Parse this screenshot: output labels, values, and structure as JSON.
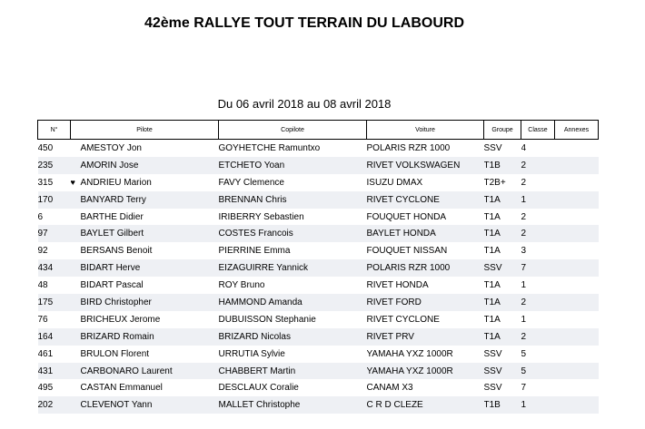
{
  "document": {
    "title": "42ème RALLYE TOUT TERRAIN DU LABOURD",
    "subtitle": "Du 06 avril 2018 au 08 avril 2018"
  },
  "table": {
    "headers": {
      "num": "N°",
      "pilote": "Pilote",
      "copilote": "Copilote",
      "voiture": "Voiture",
      "groupe": "Groupe",
      "classe": "Classe",
      "annexes": "Annexes"
    },
    "rows": [
      {
        "num": "450",
        "marker": "",
        "pilote": "AMESTOY Jon",
        "copilote": "GOYHETCHE Ramuntxo",
        "voiture": "POLARIS   RZR 1000",
        "groupe": "SSV",
        "classe": "4"
      },
      {
        "num": "235",
        "marker": "",
        "pilote": "AMORIN Jose",
        "copilote": "ETCHETO Yoan",
        "voiture": "RIVET  VOLKSWAGEN",
        "groupe": "T1B",
        "classe": "2"
      },
      {
        "num": "315",
        "marker": "♥",
        "pilote": "ANDRIEU Marion",
        "copilote": "FAVY Clemence",
        "voiture": "ISUZU  DMAX",
        "groupe": "T2B+",
        "classe": "2"
      },
      {
        "num": "170",
        "marker": "",
        "pilote": "BANYARD Terry",
        "copilote": "BRENNAN Chris",
        "voiture": "RIVET CYCLONE",
        "groupe": "T1A",
        "classe": "1"
      },
      {
        "num": "6",
        "marker": "",
        "pilote": "BARTHE Didier",
        "copilote": "IRIBERRY Sebastien",
        "voiture": "FOUQUET HONDA",
        "groupe": "T1A",
        "classe": "2"
      },
      {
        "num": "97",
        "marker": "",
        "pilote": "BAYLET Gilbert",
        "copilote": "COSTES Francois",
        "voiture": "BAYLET HONDA",
        "groupe": "T1A",
        "classe": "2"
      },
      {
        "num": "92",
        "marker": "",
        "pilote": "BERSANS Benoit",
        "copilote": "PIERRINE Emma",
        "voiture": "FOUQUET  NISSAN",
        "groupe": "T1A",
        "classe": "3"
      },
      {
        "num": "434",
        "marker": "",
        "pilote": "BIDART Herve",
        "copilote": "EIZAGUIRRE Yannick",
        "voiture": "POLARIS   RZR 1000",
        "groupe": "SSV",
        "classe": "7"
      },
      {
        "num": "48",
        "marker": "",
        "pilote": "BIDART Pascal",
        "copilote": "ROY Bruno",
        "voiture": "RIVET HONDA",
        "groupe": "T1A",
        "classe": "1"
      },
      {
        "num": "175",
        "marker": "",
        "pilote": "BIRD Christopher",
        "copilote": "HAMMOND Amanda",
        "voiture": "RIVET FORD",
        "groupe": "T1A",
        "classe": "2"
      },
      {
        "num": "76",
        "marker": "",
        "pilote": "BRICHEUX Jerome",
        "copilote": "DUBUISSON Stephanie",
        "voiture": "RIVET CYCLONE",
        "groupe": "T1A",
        "classe": "1"
      },
      {
        "num": "164",
        "marker": "",
        "pilote": "BRIZARD Romain",
        "copilote": "BRIZARD Nicolas",
        "voiture": "RIVET PRV",
        "groupe": "T1A",
        "classe": "2"
      },
      {
        "num": "461",
        "marker": "",
        "pilote": "BRULON Florent",
        "copilote": "URRUTIA Sylvie",
        "voiture": "YAMAHA  YXZ 1000R",
        "groupe": "SSV",
        "classe": "5"
      },
      {
        "num": "431",
        "marker": "",
        "pilote": "CARBONARO Laurent",
        "copilote": "CHABBERT Martin",
        "voiture": "YAMAHA  YXZ 1000R",
        "groupe": "SSV",
        "classe": "5"
      },
      {
        "num": "495",
        "marker": "",
        "pilote": "CASTAN Emmanuel",
        "copilote": "DESCLAUX Coralie",
        "voiture": "CANAM  X3",
        "groupe": "SSV",
        "classe": "7"
      },
      {
        "num": "202",
        "marker": "",
        "pilote": "CLEVENOT Yann",
        "copilote": "MALLET Christophe",
        "voiture": "C R D  CLEZE",
        "groupe": "T1B",
        "classe": "1"
      }
    ]
  }
}
